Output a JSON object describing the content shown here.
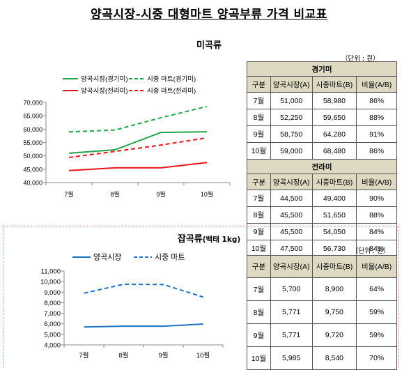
{
  "title": "양곡시장-시중 대형마트 양곡부류 가격 비교표",
  "colors": {
    "green": "#22a34a",
    "red": "#e8161b",
    "blue": "#1d72c4",
    "header_bg": "#ddd9c3"
  },
  "rice": {
    "section_title": "미곡류",
    "unit": "（단위 : 원）",
    "table": {
      "headers": [
        "구분",
        "양곡시장(A)",
        "시중마트(B)",
        "비율(A/B)"
      ],
      "groups": [
        {
          "name": "경기미",
          "rows": [
            [
              "7월",
              "51,000",
              "58,980",
              "86%"
            ],
            [
              "8월",
              "52,250",
              "59,650",
              "88%"
            ],
            [
              "9월",
              "58,750",
              "64,280",
              "91%"
            ],
            [
              "10월",
              "59,000",
              "68,480",
              "86%"
            ]
          ]
        },
        {
          "name": "전라미",
          "rows": [
            [
              "7월",
              "44,500",
              "49,400",
              "90%"
            ],
            [
              "8월",
              "45,500",
              "51,650",
              "88%"
            ],
            [
              "9월",
              "45,500",
              "54,050",
              "84%"
            ],
            [
              "10월",
              "47,500",
              "56,730",
              "84%"
            ]
          ]
        }
      ]
    }
  },
  "grain": {
    "section_title": "잡곡류",
    "section_sub": "(백태 1kg)",
    "unit": "（단위 : 원）",
    "table": {
      "headers": [
        "구분",
        "양곡시장(A)",
        "시중마트(B)",
        "비율(A/B)"
      ],
      "rows": [
        [
          "7월",
          "5,700",
          "8,900",
          "64%"
        ],
        [
          "8월",
          "5,771",
          "9,750",
          "59%"
        ],
        [
          "9월",
          "5,771",
          "9,720",
          "59%"
        ],
        [
          "10월",
          "5,985",
          "8,540",
          "70%"
        ]
      ]
    }
  },
  "chart_data": [
    {
      "type": "line",
      "categories": [
        "7월",
        "8월",
        "9월",
        "10월"
      ],
      "ylim": [
        40000,
        70000
      ],
      "yticks": [
        "40,000",
        "45,000",
        "50,000",
        "55,000",
        "60,000",
        "65,000",
        "70,000"
      ],
      "grid": false,
      "legend_position": "top",
      "series": [
        {
          "name": "양곡시장(경기미)",
          "values": [
            51000,
            52250,
            58750,
            59000
          ],
          "color": "#22a34a",
          "dashed": false
        },
        {
          "name": "시중 마트(경기미)",
          "values": [
            58980,
            59650,
            64280,
            68480
          ],
          "color": "#22a34a",
          "dashed": true
        },
        {
          "name": "양곡시장(전라미)",
          "values": [
            44500,
            45500,
            45500,
            47500
          ],
          "color": "#e8161b",
          "dashed": false
        },
        {
          "name": "시중 마트(전라미)",
          "values": [
            49400,
            51650,
            54050,
            56730
          ],
          "color": "#e8161b",
          "dashed": true
        }
      ]
    },
    {
      "type": "line",
      "categories": [
        "7월",
        "8월",
        "9월",
        "10월"
      ],
      "ylim": [
        4000,
        11000
      ],
      "yticks": [
        "4,000",
        "5,000",
        "6,000",
        "7,000",
        "8,000",
        "9,000",
        "10,000",
        "11,000"
      ],
      "grid": false,
      "legend_position": "top",
      "series": [
        {
          "name": "양곡시장",
          "values": [
            5700,
            5771,
            5771,
            5985
          ],
          "color": "#1d72c4",
          "dashed": false
        },
        {
          "name": "시중 마트",
          "values": [
            8900,
            9750,
            9720,
            8540
          ],
          "color": "#1d72c4",
          "dashed": true
        }
      ]
    }
  ]
}
